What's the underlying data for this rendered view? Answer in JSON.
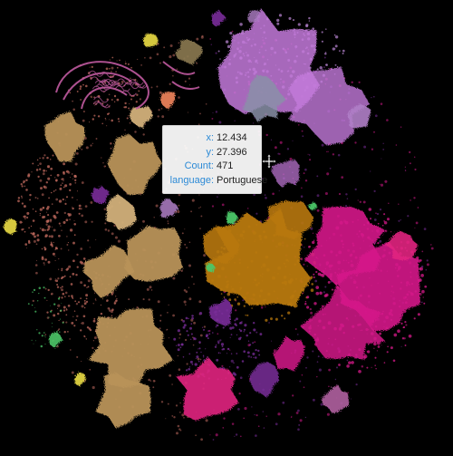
{
  "tooltip": {
    "rows": [
      {
        "key": "x:",
        "value": "12.434"
      },
      {
        "key": "y:",
        "value": "27.396"
      },
      {
        "key": "Count:",
        "value": "471"
      },
      {
        "key": "language:",
        "value": "Portuguese"
      }
    ]
  },
  "pointer": {
    "icon": "crosshair-move-cursor-icon"
  },
  "colors": {
    "background": "#000000",
    "tan": "#b8925a",
    "tan_light": "#d2b07a",
    "salmon": "#c06a5e",
    "orange_brown": "#b8780e",
    "magenta": "#d51a8a",
    "hot_pink": "#e1227f",
    "violet": "#c47adc",
    "lavender": "#b07fc8",
    "purple": "#7a2e9a",
    "green": "#4cc768",
    "yellow": "#e0d340",
    "grey_blue": "#8a90a8",
    "pink_line": "#c05aa0",
    "tooltip_key": "#2c8ad6",
    "tooltip_bg": "#ffffff"
  }
}
